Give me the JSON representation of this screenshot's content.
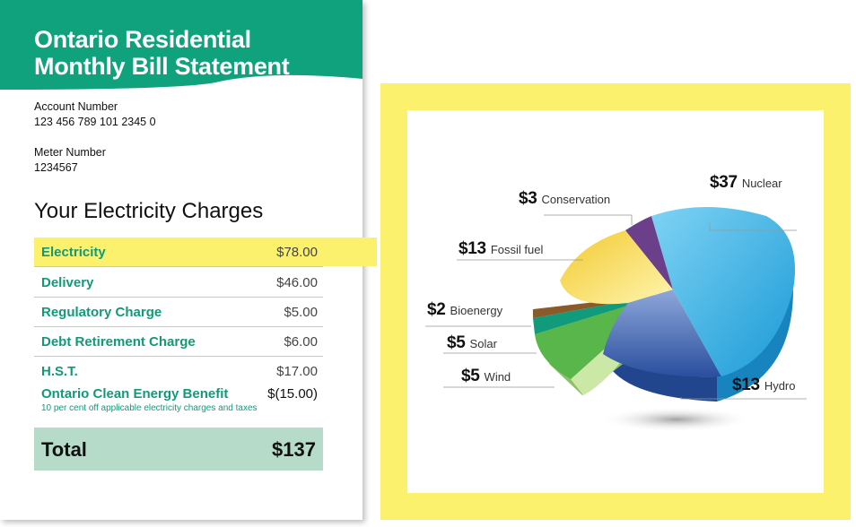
{
  "header": {
    "title_line1": "Ontario Residential",
    "title_line2": "Monthly Bill Statement"
  },
  "account": {
    "account_label": "Account Number",
    "account_value": "123 456 789 101 2345 0",
    "meter_label": "Meter Number",
    "meter_value": "1234567"
  },
  "charges": {
    "title": "Your Electricity Charges",
    "rows": [
      {
        "name": "Electricity",
        "amount": "$78.00"
      },
      {
        "name": "Delivery",
        "amount": "$46.00"
      },
      {
        "name": "Regulatory Charge",
        "amount": "$5.00"
      },
      {
        "name": "Debt Retirement Charge",
        "amount": "$6.00"
      },
      {
        "name": "H.S.T.",
        "amount": "$17.00"
      },
      {
        "name": "Ontario Clean Energy Benefit",
        "amount": "$(15.00)",
        "note": "10 per cent off applicable electricity charges and taxes"
      }
    ],
    "total_label": "Total",
    "total_amount": "$137"
  },
  "colors": {
    "header_green": "#0fa27d",
    "highlight_yellow": "#fbf16d",
    "total_bg": "#b6dcc9",
    "label_green": "#129a78"
  },
  "chart_data": {
    "type": "pie",
    "slices": [
      {
        "amount": "$37",
        "label": "Nuclear",
        "value": 37,
        "color": "#2ab4e8"
      },
      {
        "amount": "$13",
        "label": "Hydro",
        "value": 13,
        "color": "#3b68b4"
      },
      {
        "amount": "$5",
        "label": "Wind",
        "value": 5,
        "color": "#a8d58a"
      },
      {
        "amount": "$5",
        "label": "Solar",
        "value": 5,
        "color": "#4aae46"
      },
      {
        "amount": "$2",
        "label": "Bioenergy",
        "value": 2,
        "color": "#0f9b7c"
      },
      {
        "amount": "$13",
        "label": "Fossil fuel",
        "value": 13,
        "color": "#f5d94a"
      },
      {
        "amount": "$3",
        "label": "Conservation",
        "value": 3,
        "color": "#6c3f8a"
      }
    ],
    "extra_slice_colors": {
      "bioenergy_edge": "#8a5a2b"
    }
  }
}
